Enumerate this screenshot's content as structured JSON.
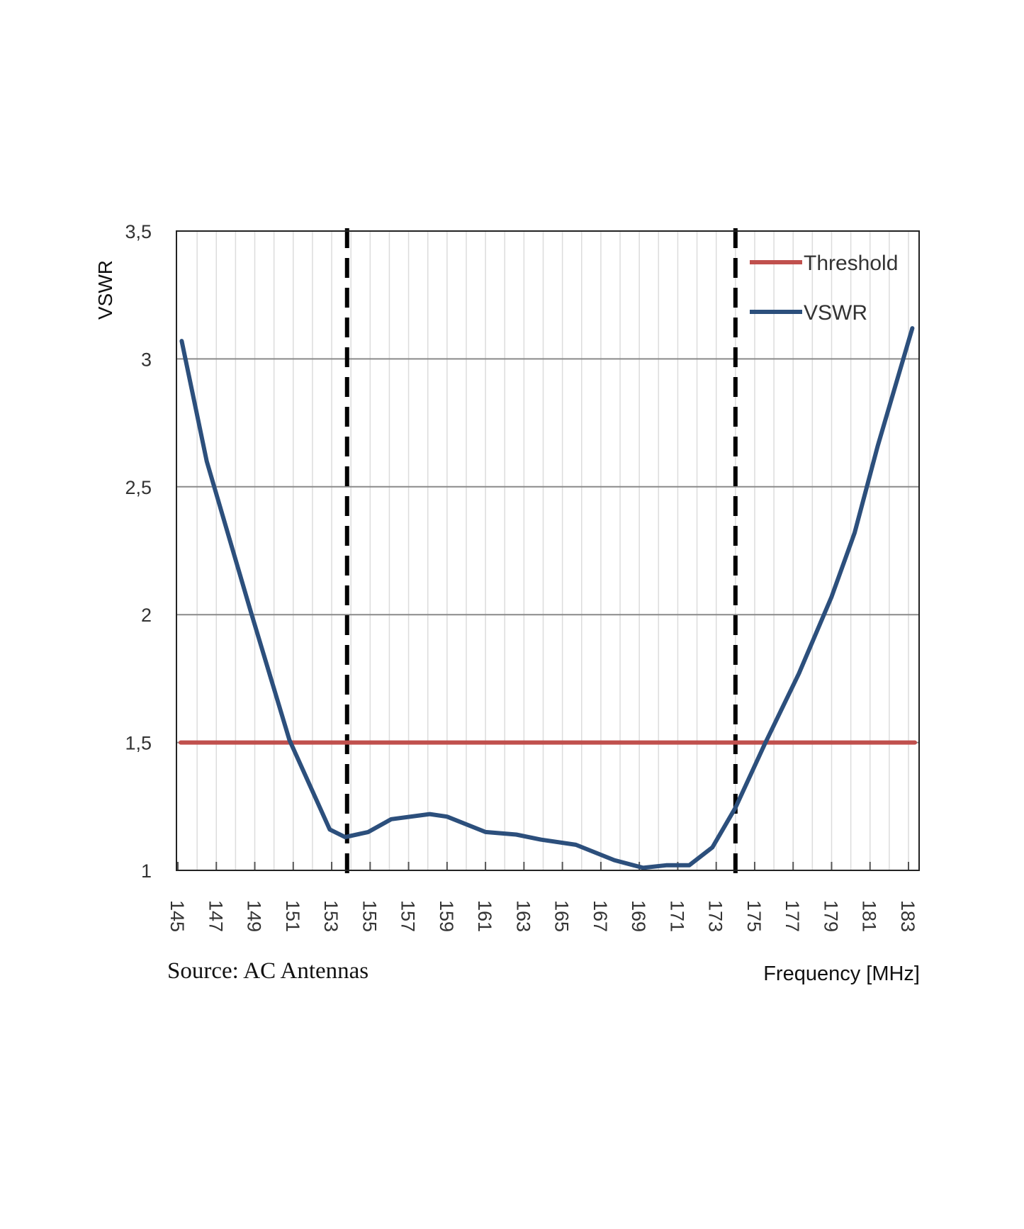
{
  "chart_data": {
    "type": "line",
    "title": "",
    "xlabel": "Frequency [MHz]",
    "ylabel": "VSWR",
    "source": "Source: AC Antennas",
    "xlim": [
      145,
      183.6
    ],
    "ylim": [
      1,
      3.5
    ],
    "x_ticks": [
      "145",
      "147",
      "149",
      "151",
      "153",
      "155",
      "157",
      "159",
      "161",
      "163",
      "165",
      "167",
      "169",
      "171",
      "173",
      "175",
      "177",
      "179",
      "181",
      "183"
    ],
    "y_ticks": [
      {
        "value": 1,
        "label": "1"
      },
      {
        "value": 1.5,
        "label": "1,5"
      },
      {
        "value": 2,
        "label": "2"
      },
      {
        "value": 2.5,
        "label": "2,5"
      },
      {
        "value": 3,
        "label": "3"
      },
      {
        "value": 3.5,
        "label": "3,5"
      }
    ],
    "grid": true,
    "legend_position": "top-right",
    "series": [
      {
        "name": "Threshold",
        "color": "#c0504d",
        "x": [
          145,
          183.5
        ],
        "y": [
          1.5,
          1.5
        ]
      },
      {
        "name": "VSWR",
        "color": "#2c4f7c",
        "x": [
          145.2,
          146.5,
          148.8,
          150.8,
          152.9,
          153.7,
          154.9,
          156.1,
          158.1,
          159,
          161,
          162.6,
          163.9,
          165.7,
          167.7,
          169.2,
          170.4,
          171.6,
          172.8,
          174,
          175.5,
          177.3,
          179,
          180.2,
          181.4,
          183.2
        ],
        "y": [
          3.07,
          2.6,
          2.01,
          1.51,
          1.16,
          1.13,
          1.15,
          1.2,
          1.22,
          1.21,
          1.15,
          1.14,
          1.12,
          1.1,
          1.04,
          1.01,
          1.02,
          1.02,
          1.09,
          1.245,
          1.49,
          1.77,
          2.07,
          2.32,
          2.66,
          3.12
        ]
      }
    ],
    "band_markers": {
      "x": [
        153.8,
        174.0
      ],
      "style": "dashed",
      "color": "#000000"
    }
  }
}
